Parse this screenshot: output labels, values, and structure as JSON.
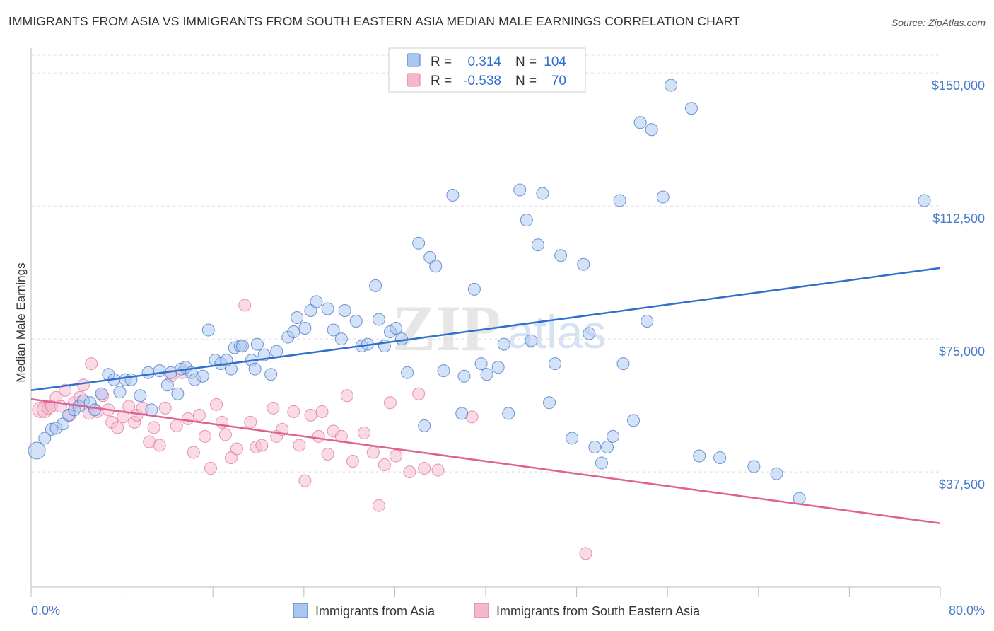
{
  "title": "IMMIGRANTS FROM ASIA VS IMMIGRANTS FROM SOUTH EASTERN ASIA MEDIAN MALE EARNINGS CORRELATION CHART",
  "source": "Source: ZipAtlas.com",
  "watermark": {
    "zip": "ZIP",
    "atlas": "atlas"
  },
  "colors": {
    "blue": "#4a7ac9",
    "blue_fill": "#a9c6ef",
    "blue_line": "#2f6fce",
    "pink": "#e07aa0",
    "pink_fill": "#f5b7cb",
    "pink_line": "#e0608e"
  },
  "legend": {
    "r_label": "R =",
    "n_label": "N =",
    "blue": {
      "r": "0.314",
      "n": "104"
    },
    "pink": {
      "r": "-0.538",
      "n": "70"
    }
  },
  "chart_data": {
    "type": "scatter",
    "title": "IMMIGRANTS FROM ASIA VS IMMIGRANTS FROM SOUTH EASTERN ASIA MEDIAN MALE EARNINGS CORRELATION CHART",
    "xlabel": "",
    "ylabel": "Median Male Earnings",
    "x_tick_labels": [
      "0.0%",
      "80.0%"
    ],
    "y_tick_labels": [
      "$37,500",
      "$75,000",
      "$112,500",
      "$150,000"
    ],
    "y_ticks": [
      37500,
      75000,
      112500,
      150000
    ],
    "xlim": [
      0,
      80
    ],
    "ylim": [
      5000,
      155000
    ],
    "grid": true,
    "legend_position": "bottom",
    "series": [
      {
        "name": "Immigrants from Asia",
        "trend": [
          [
            0,
            60500
          ],
          [
            80,
            95000
          ]
        ],
        "points": [
          [
            0.5,
            43500
          ],
          [
            1.2,
            47000
          ],
          [
            1.8,
            49500
          ],
          [
            2.2,
            49800
          ],
          [
            2.8,
            51000
          ],
          [
            3.3,
            53500
          ],
          [
            3.8,
            55000
          ],
          [
            4.2,
            56000
          ],
          [
            4.6,
            57500
          ],
          [
            5.2,
            57000
          ],
          [
            5.6,
            55000
          ],
          [
            6.2,
            59500
          ],
          [
            6.8,
            65000
          ],
          [
            7.3,
            63500
          ],
          [
            7.8,
            60000
          ],
          [
            8.3,
            63500
          ],
          [
            8.8,
            63500
          ],
          [
            9.6,
            59000
          ],
          [
            10.3,
            65500
          ],
          [
            10.6,
            55000
          ],
          [
            11.3,
            66000
          ],
          [
            12.0,
            62000
          ],
          [
            12.3,
            65500
          ],
          [
            12.9,
            59500
          ],
          [
            13.2,
            66500
          ],
          [
            13.6,
            67000
          ],
          [
            14.1,
            65500
          ],
          [
            14.4,
            63500
          ],
          [
            15.1,
            64500
          ],
          [
            15.6,
            77500
          ],
          [
            16.2,
            69000
          ],
          [
            16.7,
            68000
          ],
          [
            17.6,
            66500
          ],
          [
            17.2,
            69000
          ],
          [
            17.9,
            72500
          ],
          [
            18.4,
            73000
          ],
          [
            18.6,
            73000
          ],
          [
            19.4,
            69000
          ],
          [
            19.7,
            66500
          ],
          [
            19.9,
            73500
          ],
          [
            20.5,
            70500
          ],
          [
            21.1,
            65000
          ],
          [
            21.6,
            71500
          ],
          [
            22.6,
            75500
          ],
          [
            23.1,
            77000
          ],
          [
            23.4,
            81000
          ],
          [
            24.1,
            78000
          ],
          [
            24.6,
            83000
          ],
          [
            25.1,
            85500
          ],
          [
            26.1,
            83500
          ],
          [
            26.6,
            77500
          ],
          [
            27.3,
            75000
          ],
          [
            27.6,
            83000
          ],
          [
            28.6,
            80000
          ],
          [
            29.1,
            73000
          ],
          [
            29.6,
            73500
          ],
          [
            30.3,
            90000
          ],
          [
            30.6,
            80500
          ],
          [
            31.1,
            73000
          ],
          [
            31.6,
            77000
          ],
          [
            32.1,
            78000
          ],
          [
            32.6,
            75000
          ],
          [
            33.1,
            65500
          ],
          [
            34.1,
            102000
          ],
          [
            34.6,
            50500
          ],
          [
            35.1,
            98000
          ],
          [
            35.6,
            95500
          ],
          [
            36.3,
            66000
          ],
          [
            37.1,
            115500
          ],
          [
            37.9,
            54000
          ],
          [
            38.1,
            64500
          ],
          [
            39.0,
            89000
          ],
          [
            39.6,
            68000
          ],
          [
            40.1,
            65000
          ],
          [
            41.1,
            67000
          ],
          [
            41.6,
            73500
          ],
          [
            42.0,
            54000
          ],
          [
            43.0,
            117000
          ],
          [
            43.6,
            108500
          ],
          [
            44.0,
            74500
          ],
          [
            44.6,
            101500
          ],
          [
            45.0,
            116000
          ],
          [
            45.6,
            57000
          ],
          [
            46.1,
            68000
          ],
          [
            46.6,
            98500
          ],
          [
            47.6,
            47000
          ],
          [
            48.6,
            96000
          ],
          [
            49.1,
            76500
          ],
          [
            49.6,
            44500
          ],
          [
            50.2,
            40000
          ],
          [
            50.7,
            44500
          ],
          [
            51.2,
            47500
          ],
          [
            51.8,
            114000
          ],
          [
            52.1,
            68000
          ],
          [
            53.0,
            52000
          ],
          [
            53.6,
            136000
          ],
          [
            54.2,
            80000
          ],
          [
            54.6,
            134000
          ],
          [
            55.6,
            115000
          ],
          [
            56.3,
            146500
          ],
          [
            58.1,
            140000
          ],
          [
            58.8,
            42000
          ],
          [
            60.6,
            41500
          ],
          [
            63.6,
            39000
          ],
          [
            65.6,
            37000
          ],
          [
            67.6,
            30000
          ],
          [
            78.6,
            114000
          ]
        ]
      },
      {
        "name": "Immigrants from South Eastern Asia",
        "trend": [
          [
            0,
            58000
          ],
          [
            80,
            23000
          ]
        ],
        "points": [
          [
            0.8,
            55000
          ],
          [
            1.2,
            55000
          ],
          [
            1.5,
            55500
          ],
          [
            1.8,
            56000
          ],
          [
            2.2,
            58500
          ],
          [
            2.6,
            56000
          ],
          [
            3.0,
            60500
          ],
          [
            3.4,
            53500
          ],
          [
            3.8,
            57000
          ],
          [
            4.3,
            58500
          ],
          [
            4.6,
            62000
          ],
          [
            5.1,
            54000
          ],
          [
            5.3,
            68000
          ],
          [
            5.8,
            54500
          ],
          [
            6.3,
            59000
          ],
          [
            6.8,
            55000
          ],
          [
            7.1,
            51500
          ],
          [
            7.6,
            50000
          ],
          [
            8.1,
            53000
          ],
          [
            8.6,
            56000
          ],
          [
            9.1,
            51500
          ],
          [
            9.3,
            53500
          ],
          [
            9.8,
            55500
          ],
          [
            10.4,
            46000
          ],
          [
            10.8,
            50000
          ],
          [
            11.3,
            45000
          ],
          [
            11.8,
            55500
          ],
          [
            12.3,
            64500
          ],
          [
            12.8,
            50500
          ],
          [
            13.3,
            65500
          ],
          [
            13.8,
            52500
          ],
          [
            14.3,
            43000
          ],
          [
            14.8,
            53500
          ],
          [
            15.3,
            47500
          ],
          [
            15.8,
            38500
          ],
          [
            16.3,
            56500
          ],
          [
            16.8,
            51500
          ],
          [
            17.1,
            48000
          ],
          [
            17.6,
            41500
          ],
          [
            18.1,
            44000
          ],
          [
            18.8,
            84500
          ],
          [
            19.3,
            51500
          ],
          [
            19.8,
            44500
          ],
          [
            20.3,
            45000
          ],
          [
            21.3,
            55500
          ],
          [
            21.6,
            47500
          ],
          [
            22.1,
            49500
          ],
          [
            23.1,
            54500
          ],
          [
            23.6,
            45000
          ],
          [
            24.1,
            35000
          ],
          [
            24.6,
            53500
          ],
          [
            25.3,
            47500
          ],
          [
            25.6,
            54500
          ],
          [
            26.1,
            42500
          ],
          [
            26.6,
            49000
          ],
          [
            27.3,
            47500
          ],
          [
            27.8,
            59000
          ],
          [
            28.3,
            40500
          ],
          [
            29.3,
            48500
          ],
          [
            30.1,
            43000
          ],
          [
            30.6,
            28000
          ],
          [
            31.1,
            39500
          ],
          [
            31.6,
            57000
          ],
          [
            32.1,
            42000
          ],
          [
            33.3,
            37500
          ],
          [
            34.1,
            59500
          ],
          [
            34.6,
            38500
          ],
          [
            35.8,
            38000
          ],
          [
            38.8,
            53000
          ],
          [
            48.8,
            14500
          ]
        ]
      }
    ]
  }
}
